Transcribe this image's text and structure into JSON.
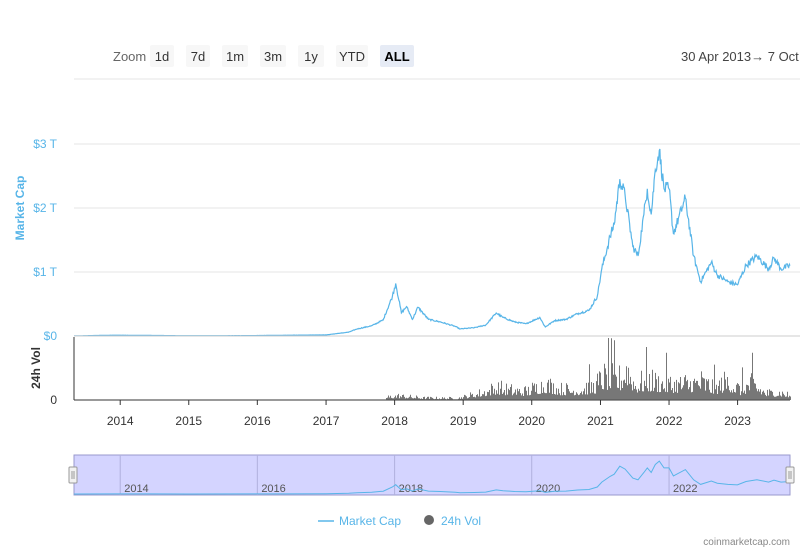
{
  "zoom": {
    "label": "Zoom",
    "buttons": [
      "1d",
      "7d",
      "1m",
      "3m",
      "1y",
      "YTD",
      "ALL"
    ],
    "active": "ALL"
  },
  "range_label": "30 Apr 2013→  7 Oct",
  "credit": "coinmarketcap.com",
  "colors": {
    "market_cap": "#58b5e8",
    "volume": "#555555",
    "navigator_fill": "#ccccff",
    "active_button": "#e6ebf5"
  },
  "chart_data": {
    "type": "line",
    "x_range": [
      "2013-04-30",
      "2023-10-07"
    ],
    "x_tick_labels": [
      "2014",
      "2015",
      "2016",
      "2017",
      "2018",
      "2019",
      "2020",
      "2021",
      "2022",
      "2023"
    ],
    "navigator_tick_labels": [
      "2014",
      "2016",
      "2018",
      "2020",
      "2022"
    ],
    "series": [
      {
        "name": "Market Cap",
        "unit": "USD trillions",
        "axis_label": "Market Cap",
        "y_ticks": [
          "$0",
          "$1 T",
          "$2 T",
          "$3 T"
        ],
        "ylim": [
          0,
          3
        ],
        "points": [
          [
            "2013-04-30",
            0.0015
          ],
          [
            "2013-12-01",
            0.013
          ],
          [
            "2014-06-01",
            0.009
          ],
          [
            "2015-01-01",
            0.004
          ],
          [
            "2015-12-01",
            0.006
          ],
          [
            "2016-06-01",
            0.012
          ],
          [
            "2017-01-01",
            0.017
          ],
          [
            "2017-05-01",
            0.06
          ],
          [
            "2017-06-15",
            0.11
          ],
          [
            "2017-09-01",
            0.16
          ],
          [
            "2017-11-01",
            0.25
          ],
          [
            "2017-12-20",
            0.62
          ],
          [
            "2018-01-07",
            0.82
          ],
          [
            "2018-02-06",
            0.36
          ],
          [
            "2018-03-05",
            0.46
          ],
          [
            "2018-04-06",
            0.26
          ],
          [
            "2018-05-05",
            0.45
          ],
          [
            "2018-06-30",
            0.26
          ],
          [
            "2018-09-01",
            0.22
          ],
          [
            "2018-11-20",
            0.15
          ],
          [
            "2018-12-15",
            0.11
          ],
          [
            "2019-03-01",
            0.13
          ],
          [
            "2019-05-01",
            0.17
          ],
          [
            "2019-06-26",
            0.36
          ],
          [
            "2019-08-01",
            0.29
          ],
          [
            "2019-10-01",
            0.22
          ],
          [
            "2019-12-01",
            0.19
          ],
          [
            "2020-02-13",
            0.29
          ],
          [
            "2020-03-13",
            0.14
          ],
          [
            "2020-05-01",
            0.24
          ],
          [
            "2020-07-01",
            0.26
          ],
          [
            "2020-09-01",
            0.35
          ],
          [
            "2020-11-01",
            0.4
          ],
          [
            "2020-12-15",
            0.62
          ],
          [
            "2021-01-08",
            1.05
          ],
          [
            "2021-02-21",
            1.55
          ],
          [
            "2021-03-15",
            1.75
          ],
          [
            "2021-04-14",
            2.45
          ],
          [
            "2021-05-12",
            2.2
          ],
          [
            "2021-06-22",
            1.4
          ],
          [
            "2021-07-20",
            1.25
          ],
          [
            "2021-08-20",
            1.9
          ],
          [
            "2021-09-07",
            2.3
          ],
          [
            "2021-09-28",
            1.9
          ],
          [
            "2021-10-20",
            2.6
          ],
          [
            "2021-11-10",
            2.9
          ],
          [
            "2021-12-05",
            2.3
          ],
          [
            "2022-01-01",
            2.3
          ],
          [
            "2022-01-24",
            1.6
          ],
          [
            "2022-03-29",
            2.15
          ],
          [
            "2022-05-12",
            1.25
          ],
          [
            "2022-06-18",
            0.85
          ],
          [
            "2022-08-14",
            1.15
          ],
          [
            "2022-09-15",
            0.95
          ],
          [
            "2022-11-10",
            0.85
          ],
          [
            "2022-12-31",
            0.8
          ],
          [
            "2023-02-15",
            1.1
          ],
          [
            "2023-04-14",
            1.25
          ],
          [
            "2023-06-15",
            1.05
          ],
          [
            "2023-07-14",
            1.22
          ],
          [
            "2023-08-20",
            1.05
          ],
          [
            "2023-10-07",
            1.1
          ]
        ]
      },
      {
        "name": "24h Vol",
        "axis_label": "24h Vol",
        "y_ticks": [
          "0"
        ],
        "points": [
          [
            "2017-11-15",
            0.08
          ],
          [
            "2018-01-15",
            0.12
          ],
          [
            "2018-06-01",
            0.06
          ],
          [
            "2018-12-01",
            0.05
          ],
          [
            "2019-04-01",
            0.2
          ],
          [
            "2019-06-26",
            0.35
          ],
          [
            "2019-09-01",
            0.28
          ],
          [
            "2019-12-01",
            0.25
          ],
          [
            "2020-01-15",
            0.35
          ],
          [
            "2020-03-13",
            0.45
          ],
          [
            "2020-06-01",
            0.3
          ],
          [
            "2020-09-01",
            0.3
          ],
          [
            "2020-12-01",
            0.4
          ],
          [
            "2021-01-11",
            0.65
          ],
          [
            "2021-04-14",
            0.6
          ],
          [
            "2021-05-19",
            0.95
          ],
          [
            "2021-07-01",
            0.45
          ],
          [
            "2021-09-07",
            0.55
          ],
          [
            "2021-11-10",
            0.5
          ],
          [
            "2022-01-24",
            0.45
          ],
          [
            "2022-05-12",
            0.5
          ],
          [
            "2022-06-13",
            0.55
          ],
          [
            "2022-09-01",
            0.35
          ],
          [
            "2022-11-09",
            0.55
          ],
          [
            "2023-01-15",
            0.3
          ],
          [
            "2023-03-13",
            0.5
          ],
          [
            "2023-06-01",
            0.2
          ],
          [
            "2023-08-17",
            0.22
          ],
          [
            "2023-10-07",
            0.12
          ]
        ]
      }
    ]
  }
}
